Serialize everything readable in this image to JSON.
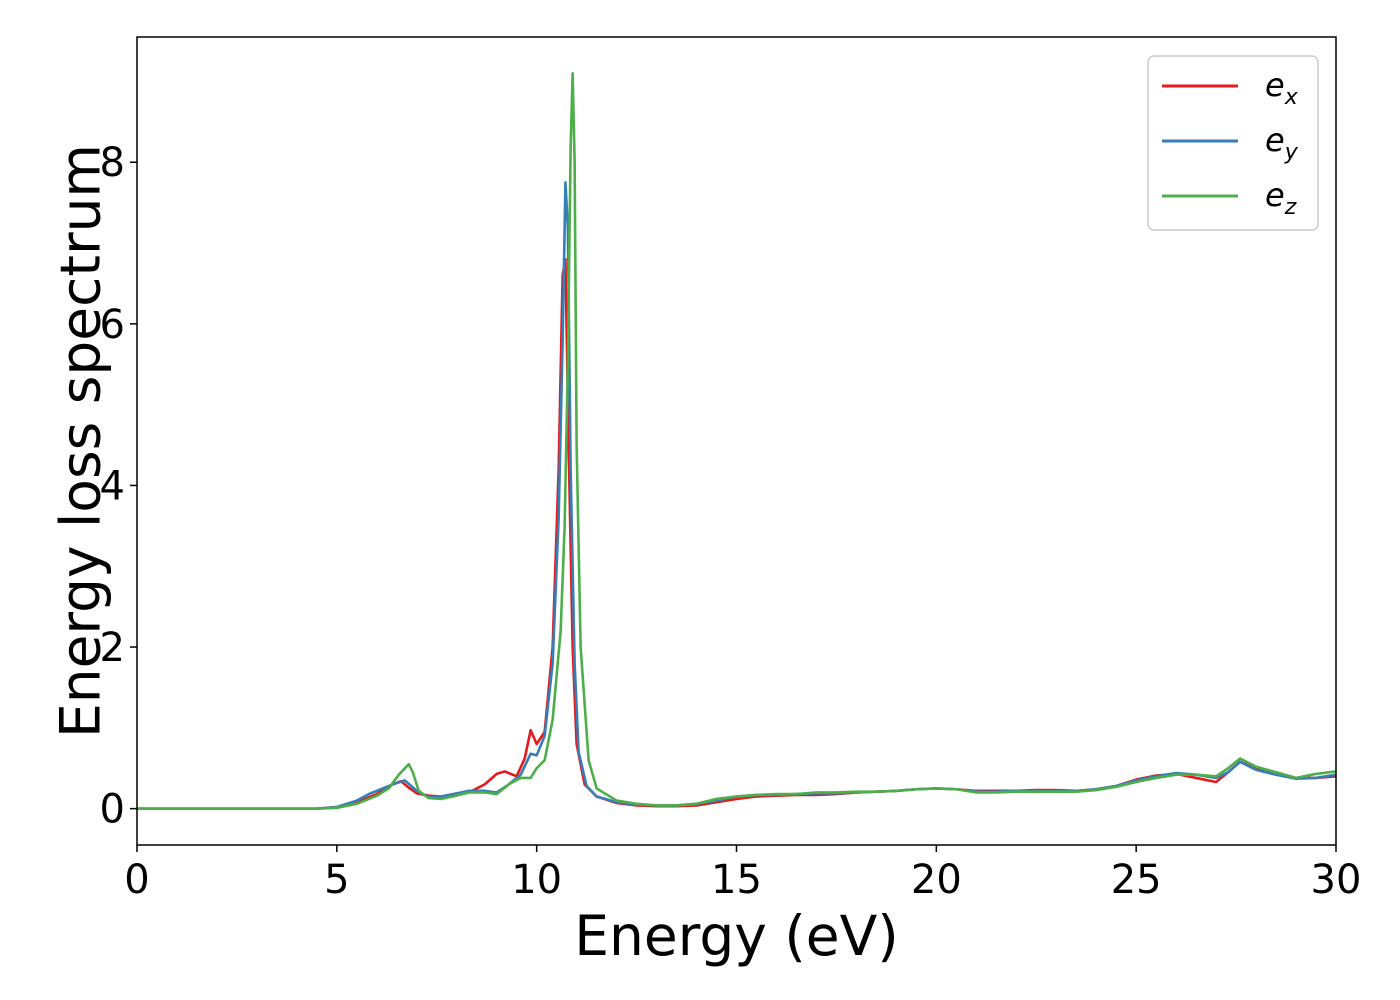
{
  "chart_data": {
    "type": "line",
    "title": "",
    "xlabel": "Energy (eV)",
    "ylabel": "Energy loss spectrum",
    "xlim": [
      0,
      30
    ],
    "ylim": [
      -0.45,
      9.55
    ],
    "xticks": [
      0,
      5,
      10,
      15,
      20,
      25,
      30
    ],
    "yticks": [
      0,
      2,
      4,
      6,
      8
    ],
    "grid": false,
    "legend_position": "top-right",
    "series": [
      {
        "name": "e",
        "subscript": "x",
        "color": "#e41a1c",
        "x": [
          0,
          4.5,
          5.0,
          5.5,
          6.0,
          6.3,
          6.6,
          6.8,
          7.0,
          7.3,
          7.6,
          7.9,
          8.3,
          8.7,
          9.0,
          9.2,
          9.5,
          9.7,
          9.85,
          10.0,
          10.2,
          10.4,
          10.55,
          10.65,
          10.72,
          10.8,
          10.9,
          11.0,
          11.2,
          11.5,
          12.0,
          12.5,
          13.0,
          13.5,
          14.0,
          14.5,
          15.0,
          15.5,
          16.0,
          16.5,
          17.0,
          17.5,
          18.0,
          18.5,
          19.0,
          19.5,
          20.0,
          20.5,
          21.0,
          21.5,
          22.0,
          22.5,
          23.0,
          23.5,
          24.0,
          24.5,
          25.0,
          25.5,
          26.0,
          26.5,
          27.0,
          27.3,
          27.6,
          28.0,
          28.5,
          29.0,
          29.5,
          30.0
        ],
        "y": [
          0,
          0,
          0.02,
          0.08,
          0.18,
          0.28,
          0.34,
          0.26,
          0.19,
          0.16,
          0.15,
          0.16,
          0.2,
          0.3,
          0.43,
          0.46,
          0.4,
          0.62,
          0.97,
          0.8,
          0.95,
          2.0,
          4.2,
          6.6,
          6.8,
          4.5,
          2.0,
          0.8,
          0.3,
          0.15,
          0.07,
          0.04,
          0.03,
          0.03,
          0.04,
          0.08,
          0.12,
          0.15,
          0.16,
          0.17,
          0.17,
          0.18,
          0.2,
          0.21,
          0.22,
          0.24,
          0.25,
          0.24,
          0.22,
          0.22,
          0.22,
          0.23,
          0.23,
          0.22,
          0.24,
          0.28,
          0.36,
          0.41,
          0.43,
          0.38,
          0.33,
          0.45,
          0.58,
          0.5,
          0.45,
          0.38,
          0.38,
          0.4
        ]
      },
      {
        "name": "e",
        "subscript": "y",
        "color": "#377eb8",
        "x": [
          0,
          4.5,
          5.0,
          5.5,
          5.8,
          6.1,
          6.4,
          6.7,
          7.0,
          7.3,
          7.6,
          7.9,
          8.3,
          8.7,
          9.0,
          9.3,
          9.6,
          9.85,
          10.0,
          10.2,
          10.4,
          10.55,
          10.65,
          10.72,
          10.78,
          10.85,
          10.95,
          11.05,
          11.25,
          11.5,
          12.0,
          12.5,
          13.0,
          13.5,
          14.0,
          14.5,
          15.0,
          15.5,
          16.0,
          16.5,
          17.0,
          17.5,
          18.0,
          18.5,
          19.0,
          19.5,
          20.0,
          20.5,
          21.0,
          21.5,
          22.0,
          22.5,
          23.0,
          23.5,
          24.0,
          24.5,
          25.0,
          25.5,
          26.0,
          26.5,
          27.0,
          27.3,
          27.6,
          28.0,
          28.5,
          29.0,
          29.5,
          30.0
        ],
        "y": [
          0,
          0,
          0.02,
          0.1,
          0.18,
          0.24,
          0.3,
          0.35,
          0.22,
          0.14,
          0.15,
          0.18,
          0.22,
          0.22,
          0.2,
          0.3,
          0.42,
          0.68,
          0.66,
          0.9,
          1.8,
          3.6,
          5.8,
          7.75,
          7.2,
          4.2,
          1.8,
          0.7,
          0.28,
          0.15,
          0.08,
          0.05,
          0.04,
          0.04,
          0.06,
          0.1,
          0.15,
          0.17,
          0.17,
          0.18,
          0.19,
          0.19,
          0.2,
          0.21,
          0.22,
          0.24,
          0.25,
          0.24,
          0.21,
          0.21,
          0.22,
          0.22,
          0.22,
          0.22,
          0.24,
          0.28,
          0.35,
          0.4,
          0.44,
          0.42,
          0.38,
          0.45,
          0.58,
          0.48,
          0.42,
          0.37,
          0.38,
          0.42
        ]
      },
      {
        "name": "e",
        "subscript": "z",
        "color": "#4daf4a",
        "x": [
          0,
          4.5,
          5.0,
          5.5,
          6.0,
          6.3,
          6.55,
          6.8,
          6.9,
          7.05,
          7.3,
          7.6,
          7.9,
          8.3,
          8.7,
          9.0,
          9.3,
          9.6,
          9.85,
          10.0,
          10.2,
          10.4,
          10.6,
          10.7,
          10.78,
          10.85,
          10.9,
          10.95,
          11.0,
          11.1,
          11.3,
          11.5,
          12.0,
          12.5,
          13.0,
          13.5,
          14.0,
          14.5,
          15.0,
          15.5,
          16.0,
          16.5,
          17.0,
          17.5,
          18.0,
          18.5,
          19.0,
          19.5,
          20.0,
          20.5,
          21.0,
          21.5,
          22.0,
          22.5,
          23.0,
          23.5,
          24.0,
          24.5,
          25.0,
          25.5,
          26.0,
          26.5,
          27.0,
          27.3,
          27.6,
          28.0,
          28.5,
          29.0,
          29.5,
          30.0
        ],
        "y": [
          0,
          0,
          0.01,
          0.06,
          0.16,
          0.25,
          0.42,
          0.55,
          0.45,
          0.22,
          0.13,
          0.12,
          0.15,
          0.2,
          0.2,
          0.18,
          0.3,
          0.38,
          0.38,
          0.5,
          0.6,
          1.1,
          2.2,
          3.5,
          5.5,
          8.2,
          9.1,
          8.0,
          4.5,
          2.0,
          0.6,
          0.25,
          0.1,
          0.06,
          0.04,
          0.04,
          0.06,
          0.12,
          0.15,
          0.17,
          0.18,
          0.18,
          0.2,
          0.2,
          0.21,
          0.21,
          0.22,
          0.24,
          0.25,
          0.24,
          0.2,
          0.2,
          0.21,
          0.21,
          0.21,
          0.21,
          0.23,
          0.27,
          0.33,
          0.38,
          0.42,
          0.42,
          0.4,
          0.5,
          0.62,
          0.52,
          0.45,
          0.38,
          0.43,
          0.46
        ]
      }
    ]
  }
}
